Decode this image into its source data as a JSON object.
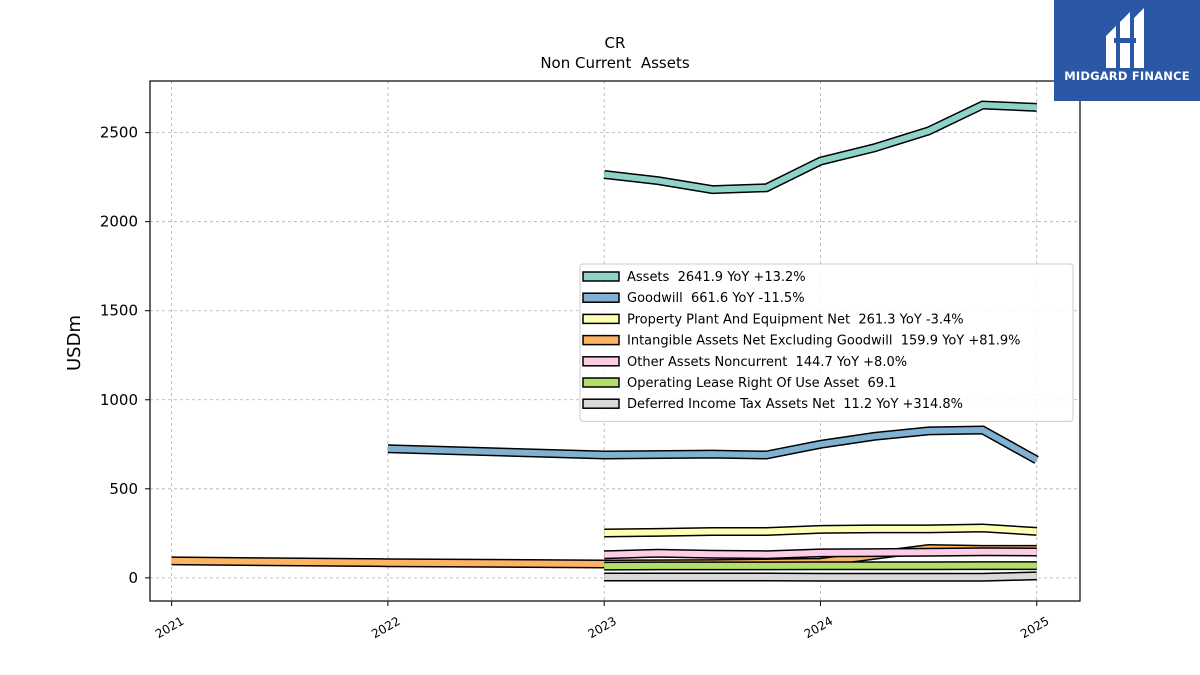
{
  "brand": {
    "name": "MIDGARD FINANCE"
  },
  "chart_data": {
    "type": "line",
    "title": "CR",
    "subtitle": "Non Current  Assets",
    "ylabel": "USDm",
    "xlabel": "",
    "xlim": [
      2020.9,
      2025.2
    ],
    "ylim": [
      -130,
      2790
    ],
    "x_ticks": [
      2021,
      2022,
      2023,
      2024,
      2025
    ],
    "x_tick_labels": [
      "2021",
      "2022",
      "2023",
      "2024",
      "2025"
    ],
    "y_ticks": [
      0,
      500,
      1000,
      1500,
      2000,
      2500
    ],
    "y_tick_labels": [
      "0",
      "500",
      "1000",
      "1500",
      "2000",
      "2500"
    ],
    "grid": true,
    "legend_position": "center-right",
    "series": [
      {
        "name": "Assets",
        "legend": "Assets  2641.9 YoY +13.2%",
        "color": "#8dd3c7",
        "x": [
          2023.0,
          2023.25,
          2023.5,
          2023.75,
          2024.0,
          2024.25,
          2024.5,
          2024.75,
          2025.0
        ],
        "y": [
          2265,
          2230,
          2180,
          2190,
          2340,
          2415,
          2510,
          2655,
          2642
        ]
      },
      {
        "name": "Goodwill",
        "legend": "Goodwill  661.6 YoY -11.5%",
        "color": "#80b1d3",
        "x": [
          2022.0,
          2023.0,
          2023.5,
          2023.75,
          2024.0,
          2024.25,
          2024.5,
          2024.75,
          2025.0
        ],
        "y": [
          725,
          690,
          695,
          690,
          750,
          795,
          825,
          830,
          662
        ]
      },
      {
        "name": "Property Plant And Equipment Net",
        "legend": "Property Plant And Equipment Net  261.3 YoY -3.4%",
        "color": "#ffffb3",
        "x": [
          2023.0,
          2023.25,
          2023.5,
          2023.75,
          2024.0,
          2024.25,
          2024.5,
          2024.75,
          2025.0
        ],
        "y": [
          252,
          255,
          260,
          260,
          272,
          275,
          275,
          280,
          261
        ]
      },
      {
        "name": "Intangible Assets Net Excluding Goodwill",
        "legend": "Intangible Assets Net Excluding Goodwill  159.9 YoY +81.9%",
        "color": "#fdb462",
        "x": [
          2021.0,
          2022.0,
          2023.0,
          2023.5,
          2024.0,
          2024.5,
          2024.75,
          2025.0
        ],
        "y": [
          95,
          85,
          78,
          80,
          88,
          165,
          160,
          160
        ]
      },
      {
        "name": "Other Assets Noncurrent",
        "legend": "Other Assets Noncurrent  144.7 YoY +8.0%",
        "color": "#fccde5",
        "x": [
          2023.0,
          2023.25,
          2023.5,
          2023.75,
          2024.0,
          2024.25,
          2024.5,
          2024.75,
          2025.0
        ],
        "y": [
          130,
          138,
          133,
          130,
          140,
          142,
          144,
          146,
          145
        ]
      },
      {
        "name": "Operating Lease Right Of Use Asset",
        "legend": "Operating Lease Right Of Use Asset  69.1",
        "color": "#b3de69",
        "x": [
          2023.0,
          2023.25,
          2023.5,
          2023.75,
          2024.0,
          2024.25,
          2024.5,
          2024.75,
          2025.0
        ],
        "y": [
          66,
          67,
          67,
          67,
          68,
          68,
          68,
          69,
          69
        ]
      },
      {
        "name": "Deferred Income Tax Assets Net",
        "legend": "Deferred Income Tax Assets Net  11.2 YoY +314.8%",
        "color": "#d9d9d9",
        "x": [
          2023.0,
          2023.25,
          2023.5,
          2023.75,
          2024.0,
          2024.25,
          2024.5,
          2024.75,
          2025.0
        ],
        "y": [
          5,
          5,
          5,
          5,
          3,
          3,
          3,
          3,
          11
        ]
      }
    ]
  }
}
